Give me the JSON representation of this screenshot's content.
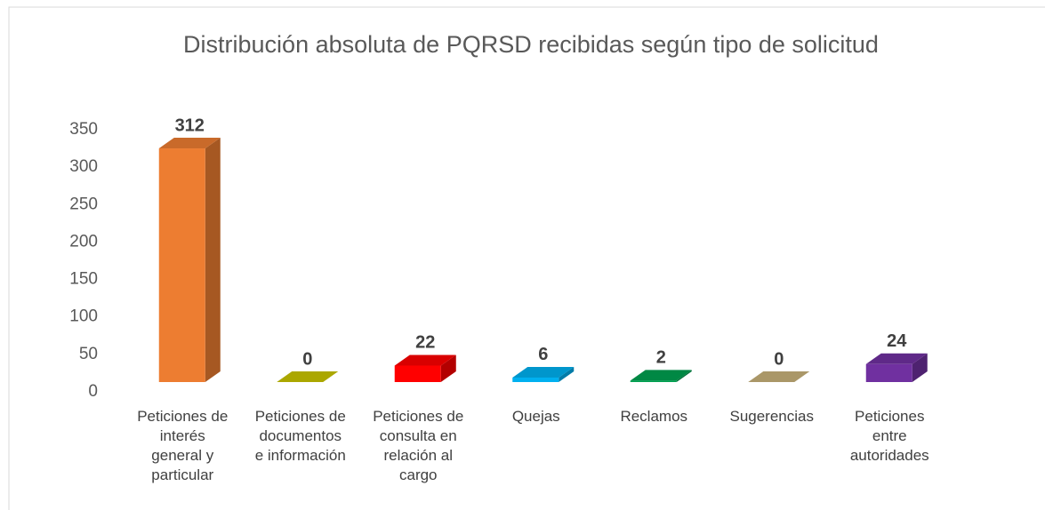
{
  "chart_data": {
    "type": "bar3d",
    "title": "Distribución absoluta de PQRSD recibidas según tipo de solicitud",
    "categories": [
      "Peticiones de\ninterés\ngeneral y\nparticular",
      "Peticiones de\ndocumentos\ne información",
      "Peticiones de\nconsulta en\nrelación al\ncargo",
      "Quejas",
      "Reclamos",
      "Sugerencias",
      "Peticiones\nentre\nautoridades"
    ],
    "values": [
      312,
      0,
      22,
      6,
      2,
      0,
      24
    ],
    "colors": [
      "#ED7D31",
      "#C9C400",
      "#FF0000",
      "#00B0F0",
      "#00A050",
      "#C8B27A",
      "#7030A0"
    ],
    "ylim": [
      0,
      350
    ],
    "yticks": [
      0,
      50,
      100,
      150,
      200,
      250,
      300,
      350
    ],
    "grid": false
  }
}
